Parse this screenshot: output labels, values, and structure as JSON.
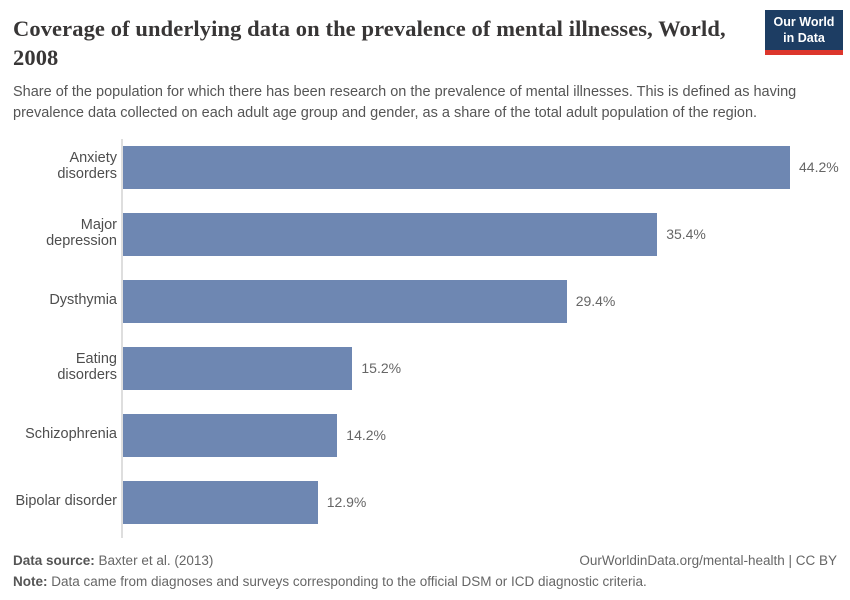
{
  "header": {
    "title": "Coverage of underlying data on the prevalence of mental illnesses, World, 2008",
    "subtitle": "Share of the population for which there has been research on the prevalence of mental illnesses. This is defined as having prevalence data collected on each adult age group and gender, as a share of the total adult population of the region."
  },
  "logo": {
    "line1": "Our World",
    "line2": "in Data",
    "bg_color": "#1d3d63",
    "accent_color": "#dc362c"
  },
  "chart_data": {
    "type": "bar",
    "orientation": "horizontal",
    "title": "Coverage of underlying data on the prevalence of mental illnesses, World, 2008",
    "categories": [
      "Anxiety disorders",
      "Major depression",
      "Dysthymia",
      "Eating disorders",
      "Schizophrenia",
      "Bipolar disorder"
    ],
    "values": [
      44.2,
      35.4,
      29.4,
      15.2,
      14.2,
      12.9
    ],
    "value_labels": [
      "44.2%",
      "35.4%",
      "29.4%",
      "15.2%",
      "14.2%",
      "12.9%"
    ],
    "unit": "%",
    "xlim": [
      0,
      47.5
    ],
    "bar_color": "#6e87b2",
    "axis_color": "#dedede",
    "grid": false,
    "legend": "none"
  },
  "footer": {
    "data_source_label": "Data source:",
    "data_source_value": "Baxter et al. (2013)",
    "attribution": "OurWorldinData.org/mental-health | CC BY",
    "note_label": "Note:",
    "note_value": "Data came from diagnoses and surveys corresponding to the official DSM or ICD diagnostic criteria."
  }
}
